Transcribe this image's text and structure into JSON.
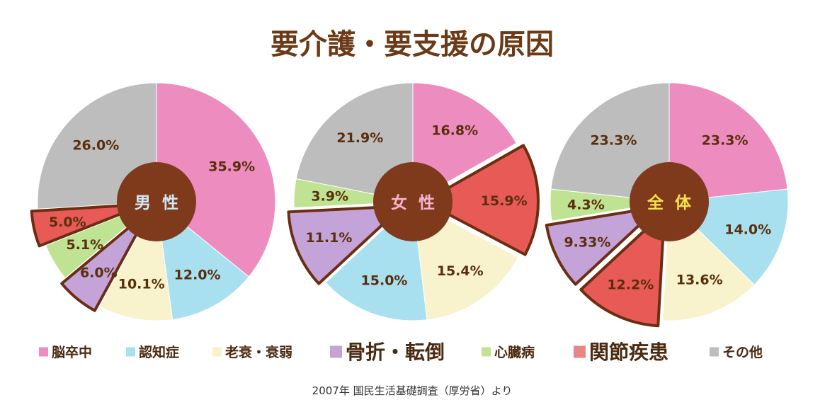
{
  "title": "要介護・要支援の原因",
  "source": "2007年  国民生活基礎調査（厚労省）より",
  "colors": {
    "stroke_highlight": "#6b2e12",
    "center_fill": "#7f3a1c"
  },
  "chart_data": [
    {
      "type": "pie",
      "center_label": "男 性",
      "center_label_color": "#cfeaf6",
      "slices": [
        {
          "label": "脳卒中",
          "value": 35.9,
          "text": "35.9%",
          "color": "#ec8cbf",
          "highlight": false
        },
        {
          "label": "認知症",
          "value": 12.0,
          "text": "12.0%",
          "color": "#a9e0f0",
          "highlight": false
        },
        {
          "label": "老衰・衰弱",
          "value": 10.1,
          "text": "10.1%",
          "color": "#f8f2cd",
          "highlight": false
        },
        {
          "label": "骨折・転倒",
          "value": 6.0,
          "text": "6.0%",
          "color": "#c3a3d8",
          "highlight": true
        },
        {
          "label": "心臓病",
          "value": 5.1,
          "text": "5.1%",
          "color": "#bfe393",
          "highlight": false
        },
        {
          "label": "関節疾患",
          "value": 5.0,
          "text": "5.0%",
          "color": "#e85a55",
          "highlight": true
        },
        {
          "label": "その他",
          "value": 26.0,
          "text": "26.0%",
          "color": "#bdbdbd",
          "highlight": false
        }
      ]
    },
    {
      "type": "pie",
      "center_label": "女 性",
      "center_label_color": "#f5b3cf",
      "slices": [
        {
          "label": "脳卒中",
          "value": 16.8,
          "text": "16.8%",
          "color": "#ec8cbf",
          "highlight": false
        },
        {
          "label": "関節疾患",
          "value": 15.9,
          "text": "15.9%",
          "color": "#e85a55",
          "highlight": true
        },
        {
          "label": "老衰・衰弱",
          "value": 15.4,
          "text": "15.4%",
          "color": "#f8f2cd",
          "highlight": false
        },
        {
          "label": "認知症",
          "value": 15.0,
          "text": "15.0%",
          "color": "#a9e0f0",
          "highlight": false
        },
        {
          "label": "骨折・転倒",
          "value": 11.1,
          "text": "11.1%",
          "color": "#c3a3d8",
          "highlight": true
        },
        {
          "label": "心臓病",
          "value": 3.9,
          "text": "3.9%",
          "color": "#bfe393",
          "highlight": false
        },
        {
          "label": "その他",
          "value": 21.9,
          "text": "21.9%",
          "color": "#bdbdbd",
          "highlight": false
        }
      ]
    },
    {
      "type": "pie",
      "center_label": "全 体",
      "center_label_color": "#f7e24a",
      "slices": [
        {
          "label": "脳卒中",
          "value": 23.3,
          "text": "23.3%",
          "color": "#ec8cbf",
          "highlight": false
        },
        {
          "label": "認知症",
          "value": 14.0,
          "text": "14.0%",
          "color": "#a9e0f0",
          "highlight": false
        },
        {
          "label": "老衰・衰弱",
          "value": 13.6,
          "text": "13.6%",
          "color": "#f8f2cd",
          "highlight": false
        },
        {
          "label": "関節疾患",
          "value": 12.2,
          "text": "12.2%",
          "color": "#e85a55",
          "highlight": true
        },
        {
          "label": "骨折・転倒",
          "value": 9.33,
          "text": "9.33%",
          "color": "#c3a3d8",
          "highlight": true
        },
        {
          "label": "心臓病",
          "value": 4.3,
          "text": "4.3%",
          "color": "#bfe393",
          "highlight": false
        },
        {
          "label": "その他",
          "value": 23.3,
          "text": "23.3%",
          "color": "#bdbdbd",
          "highlight": false
        }
      ]
    }
  ],
  "legend": [
    {
      "label": "脳卒中",
      "color": "#ec8cbf",
      "emphasis": false
    },
    {
      "label": "認知症",
      "color": "#a9e0f0",
      "emphasis": false
    },
    {
      "label": "老衰・衰弱",
      "color": "#f8f2cd",
      "emphasis": false
    },
    {
      "label": "骨折・転倒",
      "color": "#c3a3d8",
      "emphasis": true
    },
    {
      "label": "心臓病",
      "color": "#bfe393",
      "emphasis": false
    },
    {
      "label": "関節疾患",
      "color": "#e88683",
      "emphasis": true
    },
    {
      "label": "その他",
      "color": "#bdbdbd",
      "emphasis": false
    }
  ]
}
